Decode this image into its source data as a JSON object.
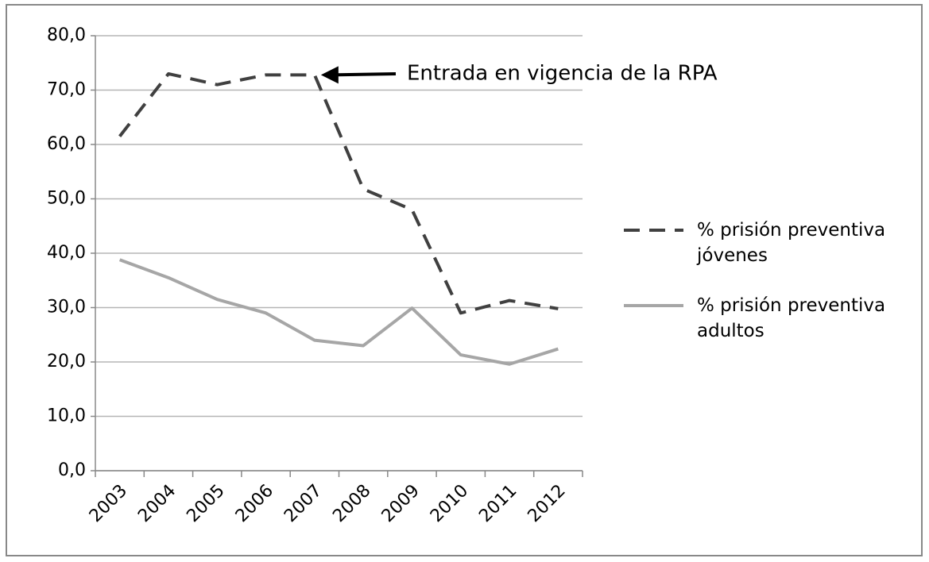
{
  "chart_data": {
    "type": "line",
    "annotation": "Entrada en vigencia de la RPA",
    "categories": [
      "2003",
      "2004",
      "2005",
      "2006",
      "2007",
      "2008",
      "2009",
      "2010",
      "2011",
      "2012"
    ],
    "series": [
      {
        "name": "% prisión preventiva jóvenes",
        "color": "#404040",
        "dashed": true,
        "values": [
          61.5,
          73.0,
          71.0,
          72.8,
          72.8,
          51.8,
          48.0,
          29.0,
          31.3,
          29.8
        ]
      },
      {
        "name": "% prisión preventiva adultos",
        "color": "#a6a6a6",
        "dashed": false,
        "values": [
          38.8,
          35.5,
          31.5,
          29.0,
          24.0,
          23.0,
          29.9,
          21.3,
          19.6,
          22.4
        ]
      }
    ],
    "annotation_target": 4,
    "ylim": [
      0,
      80
    ],
    "yticks": [
      {
        "value": 0,
        "label": "0,0"
      },
      {
        "value": 10,
        "label": "10,0"
      },
      {
        "value": 20,
        "label": "20,0"
      },
      {
        "value": 30,
        "label": "30,0"
      },
      {
        "value": 40,
        "label": "40,0"
      },
      {
        "value": 50,
        "label": "50,0"
      },
      {
        "value": 60,
        "label": "60,0"
      },
      {
        "value": 70,
        "label": "70,0"
      },
      {
        "value": 80,
        "label": "80,0"
      }
    ],
    "grid": true,
    "legend": "right"
  }
}
